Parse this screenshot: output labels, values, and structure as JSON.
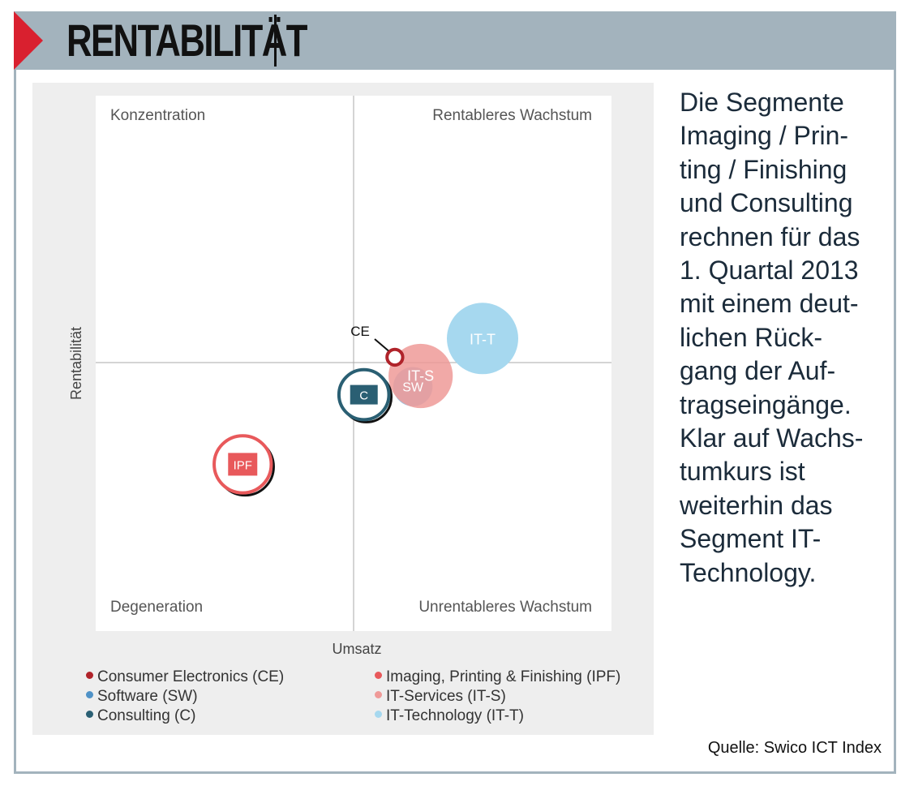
{
  "header": {
    "title": "RENTABILITÄT"
  },
  "side_text": "Die Segmente\nImaging / Prin-\nting / Finishing\nund Consulting\nrechnen für das\n1. Quartal 2013\nmit einem deut-\nlichen Rück-\ngang der Auf-\ntragseingänge.\nKlar auf Wachs-\ntumkurs ist\nweiterhin das\nSegment IT-\nTechnology.",
  "source": "Quelle: Swico ICT Index",
  "colors": {
    "accent": "#d9202f",
    "header_bg": "#a3b3bd",
    "CE": "#b0232a",
    "IPF": "#e8595b",
    "SW": "#4f92c7",
    "ITS": "#ef9a98",
    "C": "#2a5f73",
    "ITT": "#a6d8ef"
  },
  "chart_data": {
    "type": "scatter",
    "title": "",
    "xlabel": "Umsatz",
    "ylabel": "Rentabilität",
    "xlim": [
      -1,
      1
    ],
    "ylim": [
      -1,
      1
    ],
    "grid": false,
    "quadrants": {
      "top_left": "Konzentration",
      "top_right": "Rentableres Wachstum",
      "bottom_left": "Degeneration",
      "bottom_right": "Unrentableres Wachstum"
    },
    "legend": [
      {
        "label": "Consumer Electronics (CE)",
        "key": "CE"
      },
      {
        "label": "Imaging, Printing & Finishing (IPF)",
        "key": "IPF"
      },
      {
        "label": "Software (SW)",
        "key": "SW"
      },
      {
        "label": "IT-Services (IT-S)",
        "key": "ITS"
      },
      {
        "label": "Consulting (C)",
        "key": "C"
      },
      {
        "label": "IT-Technology (IT-T)",
        "key": "ITT"
      }
    ],
    "series": [
      {
        "key": "ITT",
        "label": "IT-T",
        "x": 0.5,
        "y": 0.09,
        "size": 1.0,
        "style": "fill"
      },
      {
        "key": "SW",
        "label": "SW",
        "x": 0.23,
        "y": -0.09,
        "size": 0.55,
        "style": "fill"
      },
      {
        "key": "ITS",
        "label": "IT-S",
        "x": 0.26,
        "y": -0.05,
        "size": 0.9,
        "style": "fill"
      },
      {
        "key": "C",
        "label": "C",
        "x": 0.04,
        "y": -0.12,
        "size": 0.7,
        "style": "ring"
      },
      {
        "key": "IPF",
        "label": "IPF",
        "x": -0.43,
        "y": -0.38,
        "size": 0.8,
        "style": "ring"
      },
      {
        "key": "CE",
        "label": "CE",
        "x": 0.16,
        "y": 0.02,
        "size": 0.22,
        "style": "ring"
      }
    ]
  }
}
